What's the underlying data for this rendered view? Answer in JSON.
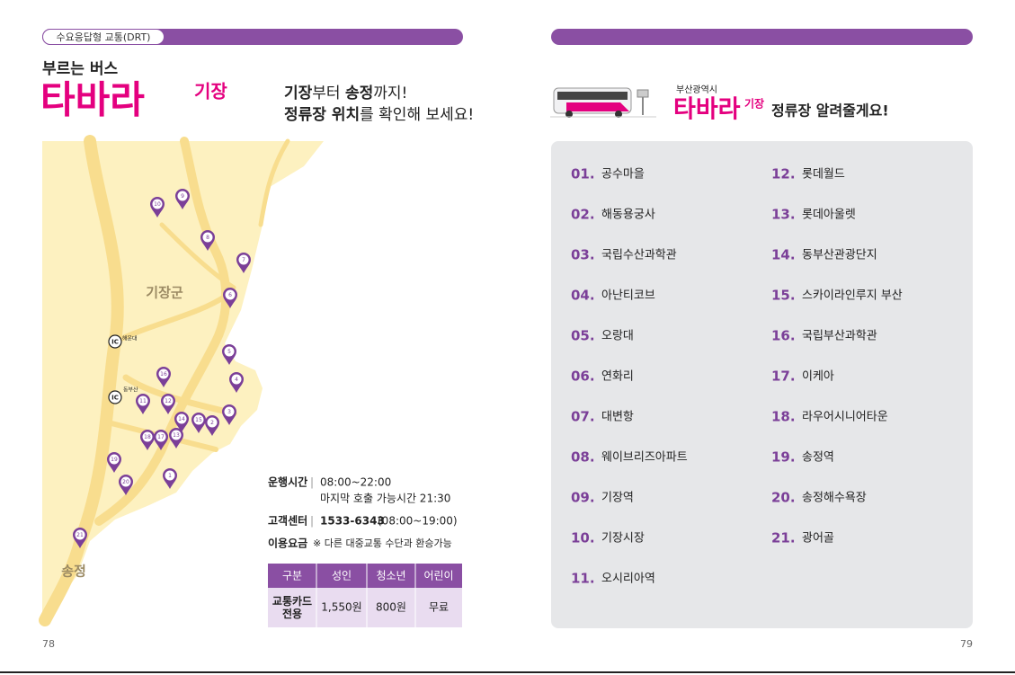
{
  "left": {
    "tag": "수요응답형 교통(DRT)",
    "heading": "부르는 버스",
    "brand": "타바라",
    "brand_sub": "기장",
    "tagline": [
      [
        "기장",
        "부터 ",
        "송정",
        "까지!"
      ],
      [
        "정류장 위치",
        "를 확인해 보세요!"
      ]
    ],
    "map": {
      "region_labels": [
        "기장군",
        "송정"
      ],
      "ic": [
        {
          "mark": "IC",
          "label": "해운대"
        },
        {
          "mark": "IC",
          "label": "동부산"
        }
      ],
      "markers": [
        "1",
        "2",
        "3",
        "4",
        "5",
        "6",
        "7",
        "8",
        "9",
        "10",
        "11",
        "12",
        "13",
        "14",
        "15",
        "16",
        "17",
        "18",
        "19",
        "20",
        "21"
      ]
    },
    "info": {
      "hours_label": "운행시간",
      "hours": "08:00~22:00",
      "last_call": "마지막 호출 가능시간 21:30",
      "center_label": "고객센터",
      "center_phone": "1533-6343",
      "center_hours": "(08:00~19:00)",
      "fare_label": "이용요금",
      "fare_note": "※ 다른 대중교통 수단과 환승가능"
    },
    "fare_table": {
      "header": [
        "구분",
        "성인",
        "청소년",
        "어린이"
      ],
      "rows": [
        [
          "교통카드\n전용",
          "1,550원",
          "800원",
          "무료"
        ]
      ]
    },
    "page_number": "78"
  },
  "right": {
    "region": "부산광역시",
    "brand": "타바라",
    "brand_sub": "기장",
    "title": "정류장 알려줄게요!",
    "stops": [
      {
        "no": "01.",
        "name": "공수마을"
      },
      {
        "no": "02.",
        "name": "해동용궁사"
      },
      {
        "no": "03.",
        "name": "국립수산과학관"
      },
      {
        "no": "04.",
        "name": "아난티코브"
      },
      {
        "no": "05.",
        "name": "오랑대"
      },
      {
        "no": "06.",
        "name": "연화리"
      },
      {
        "no": "07.",
        "name": "대변항"
      },
      {
        "no": "08.",
        "name": "웨이브리즈아파트"
      },
      {
        "no": "09.",
        "name": "기장역"
      },
      {
        "no": "10.",
        "name": "기장시장"
      },
      {
        "no": "11.",
        "name": "오시리아역"
      },
      {
        "no": "12.",
        "name": "롯데월드"
      },
      {
        "no": "13.",
        "name": "롯데아울렛"
      },
      {
        "no": "14.",
        "name": "동부산관광단지"
      },
      {
        "no": "15.",
        "name": "스카이라인루지 부산"
      },
      {
        "no": "16.",
        "name": "국립부산과학관"
      },
      {
        "no": "17.",
        "name": "이케아"
      },
      {
        "no": "18.",
        "name": "라우어시니어타운"
      },
      {
        "no": "19.",
        "name": "송정역"
      },
      {
        "no": "20.",
        "name": "송정해수욕장"
      },
      {
        "no": "21.",
        "name": "광어골"
      }
    ],
    "page_number": "79"
  }
}
